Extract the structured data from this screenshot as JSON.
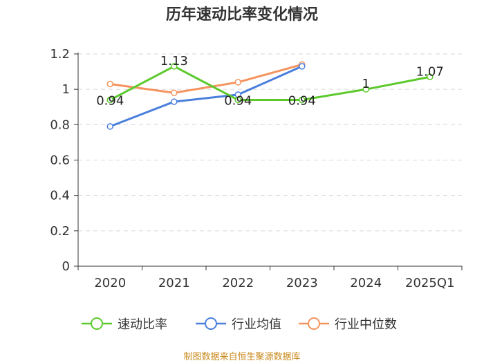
{
  "chart_data": {
    "type": "line",
    "title": "历年速动比率变化情况",
    "categories": [
      "2020",
      "2021",
      "2022",
      "2023",
      "2024",
      "2025Q1"
    ],
    "ylim": [
      0,
      1.2
    ],
    "yticks": [
      "0",
      "0.2",
      "0.4",
      "0.6",
      "0.8",
      "1",
      "1.2"
    ],
    "ytick_values": [
      0,
      0.2,
      0.4,
      0.6,
      0.8,
      1,
      1.2
    ],
    "grid": true,
    "legend_position": "bottom-center",
    "series": [
      {
        "name": "速动比率",
        "color": "#5cc92b",
        "values": [
          0.94,
          1.13,
          0.94,
          0.94,
          1,
          1.07
        ],
        "labels": [
          "0.94",
          "1.13",
          "0.94",
          "0.94",
          "1",
          "1.07"
        ]
      },
      {
        "name": "行业均值",
        "color": "#4a7fdd",
        "values": [
          0.79,
          0.93,
          0.97,
          1.13,
          null,
          null
        ]
      },
      {
        "name": "行业中位数",
        "color": "#f4935e",
        "values": [
          1.03,
          0.98,
          1.04,
          1.14,
          null,
          null
        ]
      }
    ],
    "source": "制图数据来自恒生聚源数据库"
  }
}
